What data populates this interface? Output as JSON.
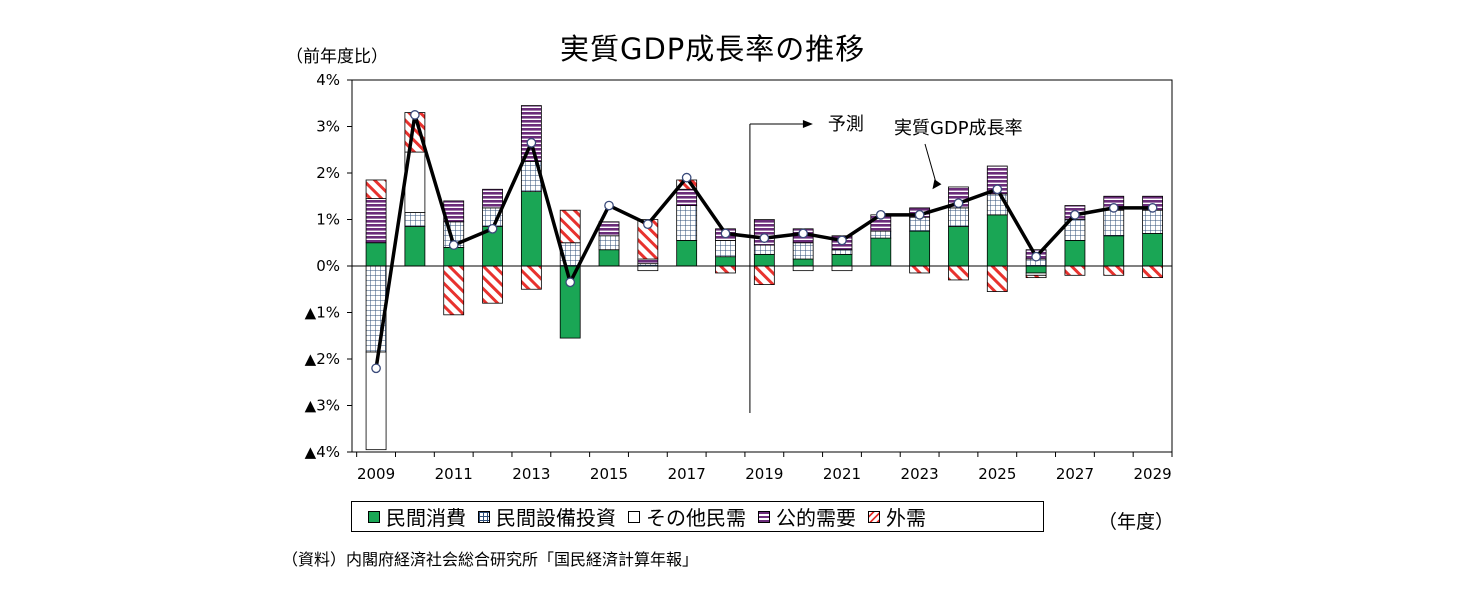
{
  "chart_data": {
    "type": "bar",
    "title": "実質GDP成長率の推移",
    "ylabel": "（前年度比）",
    "xlabel": "（年度）",
    "ylim": [
      -4,
      4
    ],
    "y_ticks": [
      "4%",
      "3%",
      "2%",
      "1%",
      "0%",
      "▲1%",
      "▲2%",
      "▲3%",
      "▲4%"
    ],
    "x_tick_labels": [
      "2009",
      "2011",
      "2013",
      "2015",
      "2017",
      "2019",
      "2021",
      "2023",
      "2025",
      "2027",
      "2029"
    ],
    "categories": [
      "2009",
      "2010",
      "2011",
      "2012",
      "2013",
      "2014",
      "2015",
      "2016",
      "2017",
      "2018",
      "2019",
      "2020",
      "2021",
      "2022",
      "2023",
      "2024",
      "2025",
      "2026",
      "2027",
      "2028",
      "2029"
    ],
    "stacked": true,
    "series": [
      {
        "name": "民間消費",
        "values": [
          0.5,
          0.85,
          0.4,
          0.85,
          1.6,
          -1.55,
          0.35,
          0.0,
          0.55,
          0.2,
          0.25,
          0.15,
          0.25,
          0.6,
          0.75,
          0.85,
          1.1,
          -0.15,
          0.55,
          0.65,
          0.7
        ]
      },
      {
        "name": "民間設備投資",
        "values": [
          -1.85,
          0.3,
          0.55,
          0.4,
          0.65,
          0.5,
          0.3,
          0.05,
          0.75,
          0.35,
          0.2,
          0.35,
          0.1,
          0.15,
          0.3,
          0.4,
          0.45,
          0.15,
          0.45,
          0.55,
          0.5
        ]
      },
      {
        "name": "その他民需",
        "values": [
          -2.1,
          1.3,
          0.0,
          0.0,
          0.0,
          0.0,
          0.0,
          -0.1,
          0.0,
          0.0,
          0.0,
          -0.1,
          -0.1,
          0.0,
          0.0,
          0.0,
          0.0,
          -0.05,
          0.0,
          0.0,
          0.0
        ]
      },
      {
        "name": "公的需要",
        "values": [
          0.95,
          0.0,
          0.45,
          0.4,
          1.2,
          0.0,
          0.3,
          0.1,
          0.35,
          0.25,
          0.55,
          0.3,
          0.3,
          0.35,
          0.2,
          0.45,
          0.6,
          0.2,
          0.3,
          0.3,
          0.3
        ]
      },
      {
        "name": "外需",
        "values": [
          0.4,
          0.85,
          -1.05,
          -0.8,
          -0.5,
          0.7,
          0.0,
          0.85,
          0.2,
          -0.15,
          -0.4,
          0.0,
          0.0,
          0.0,
          -0.15,
          -0.3,
          -0.55,
          -0.05,
          -0.2,
          -0.2,
          -0.25
        ]
      }
    ],
    "line": {
      "name": "実質GDP成長率",
      "values": [
        -2.2,
        3.25,
        0.45,
        0.8,
        2.65,
        -0.35,
        1.3,
        0.9,
        1.9,
        0.7,
        0.6,
        0.7,
        0.55,
        1.1,
        1.1,
        1.35,
        1.65,
        0.2,
        1.1,
        1.25,
        1.25
      ]
    },
    "annotations": [
      {
        "text": "予測",
        "category": "2019"
      },
      {
        "text": "実質GDP成長率",
        "category": "2024"
      }
    ],
    "legend": "bottom",
    "grid": false
  },
  "page": {
    "source": "（資料）内閣府経済社会総合研究所「国民経済計算年報」"
  }
}
